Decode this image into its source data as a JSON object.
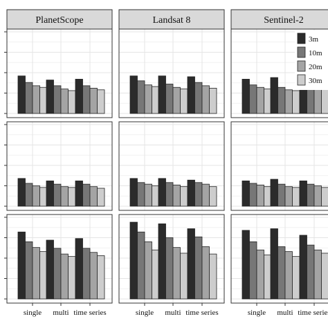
{
  "chart_data": {
    "type": "bar",
    "layout": "facet-grid",
    "columns": [
      "PlanetScope",
      "Landsat 8",
      "Sentinel-2"
    ],
    "row_count": 3,
    "categories": [
      "single",
      "multi",
      "time series"
    ],
    "series": [
      {
        "name": "3m",
        "color": "#2b2b2b"
      },
      {
        "name": "10m",
        "color": "#777777"
      },
      {
        "name": "20m",
        "color": "#a4a4a4"
      },
      {
        "name": "30m",
        "color": "#cdcdcd"
      }
    ],
    "ylim": [
      0,
      1
    ],
    "legend_position": "top-right",
    "grid": true,
    "panels": [
      [
        {
          "values": [
            [
              0.46,
              0.38,
              0.34,
              0.32
            ],
            [
              0.41,
              0.34,
              0.3,
              0.28
            ],
            [
              0.42,
              0.34,
              0.31,
              0.29
            ]
          ]
        },
        {
          "values": [
            [
              0.46,
              0.4,
              0.35,
              0.33
            ],
            [
              0.46,
              0.36,
              0.32,
              0.3
            ],
            [
              0.45,
              0.38,
              0.34,
              0.31
            ]
          ]
        },
        {
          "values": [
            [
              0.42,
              0.35,
              0.32,
              0.3
            ],
            [
              0.44,
              0.32,
              0.29,
              0.28
            ],
            [
              0.41,
              0.35,
              0.33,
              0.31
            ]
          ]
        }
      ],
      [
        {
          "values": [
            [
              0.34,
              0.28,
              0.25,
              0.23
            ],
            [
              0.31,
              0.27,
              0.24,
              0.23
            ],
            [
              0.31,
              0.27,
              0.24,
              0.22
            ]
          ]
        },
        {
          "values": [
            [
              0.34,
              0.29,
              0.27,
              0.25
            ],
            [
              0.34,
              0.29,
              0.26,
              0.24
            ],
            [
              0.32,
              0.29,
              0.27,
              0.24
            ]
          ]
        },
        {
          "values": [
            [
              0.31,
              0.28,
              0.26,
              0.24
            ],
            [
              0.33,
              0.27,
              0.24,
              0.23
            ],
            [
              0.31,
              0.27,
              0.25,
              0.23
            ]
          ]
        }
      ],
      [
        {
          "values": [
            [
              0.82,
              0.7,
              0.63,
              0.58
            ],
            [
              0.72,
              0.62,
              0.55,
              0.52
            ],
            [
              0.74,
              0.62,
              0.57,
              0.53
            ]
          ]
        },
        {
          "values": [
            [
              0.94,
              0.82,
              0.7,
              0.6
            ],
            [
              0.92,
              0.75,
              0.63,
              0.56
            ],
            [
              0.86,
              0.76,
              0.64,
              0.55
            ]
          ]
        },
        {
          "values": [
            [
              0.84,
              0.7,
              0.6,
              0.54
            ],
            [
              0.86,
              0.64,
              0.58,
              0.52
            ],
            [
              0.78,
              0.66,
              0.6,
              0.56
            ]
          ]
        }
      ]
    ]
  }
}
